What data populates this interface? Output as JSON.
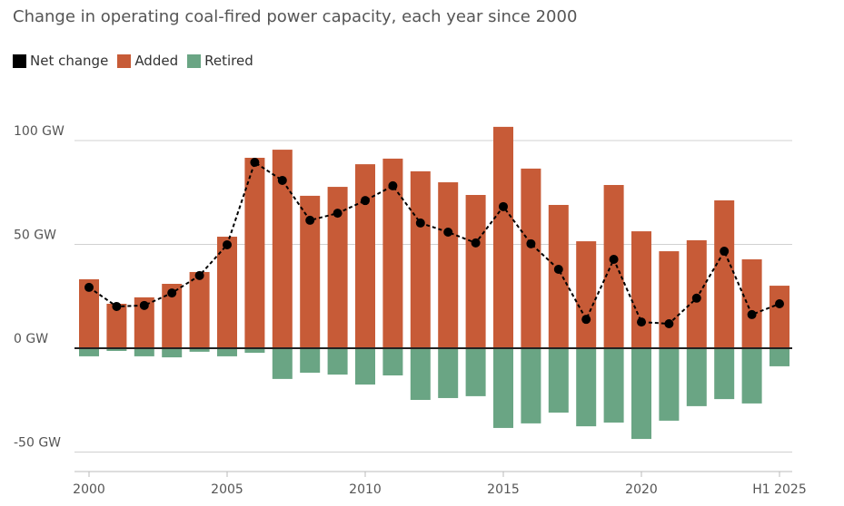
{
  "chart_data": {
    "type": "bar",
    "title": "Change in operating coal-fired power capacity, each year since 2000",
    "categories": [
      "2000",
      "2001",
      "2002",
      "2003",
      "2004",
      "2005",
      "2006",
      "2007",
      "2008",
      "2009",
      "2010",
      "2011",
      "2012",
      "2013",
      "2014",
      "2015",
      "2016",
      "2017",
      "2018",
      "2019",
      "2020",
      "2021",
      "2022",
      "2023",
      "2024",
      "H1 2025"
    ],
    "x_tick_labels": [
      "2000",
      "2005",
      "2010",
      "2015",
      "2020",
      "H1 2025"
    ],
    "y_ticks": [
      -50,
      0,
      50,
      100
    ],
    "y_tick_labels": [
      "-50 GW",
      "0 GW",
      "50 GW",
      "100 GW"
    ],
    "ylim": [
      -60,
      120
    ],
    "unit": "GW",
    "grid": true,
    "legend_position": "top-left",
    "series": [
      {
        "name": "Net change",
        "kind": "line-dashed-markers",
        "color": "#000000",
        "values": [
          29.3,
          20.1,
          20.6,
          26.6,
          35.0,
          49.8,
          89.5,
          80.8,
          61.6,
          65.0,
          71.1,
          78.2,
          60.3,
          55.9,
          50.7,
          68.2,
          50.3,
          38.0,
          13.9,
          42.8,
          12.6,
          11.8,
          24.1,
          46.7,
          16.2,
          21.4
        ]
      },
      {
        "name": "Added",
        "kind": "bar",
        "color": "#c75b37",
        "values": [
          33.2,
          21.4,
          24.5,
          31.0,
          36.7,
          53.7,
          91.7,
          95.6,
          73.4,
          77.7,
          88.6,
          91.3,
          85.2,
          79.9,
          73.8,
          106.6,
          86.5,
          69.0,
          51.5,
          78.6,
          56.3,
          46.7,
          52.0,
          71.2,
          42.8,
          30.1
        ]
      },
      {
        "name": "Retired",
        "kind": "bar",
        "color": "#6aa584",
        "values": [
          -3.9,
          -1.3,
          -3.9,
          -4.4,
          -1.7,
          -3.9,
          -2.2,
          -14.8,
          -11.8,
          -12.7,
          -17.5,
          -13.1,
          -24.9,
          -24.0,
          -23.1,
          -38.4,
          -36.2,
          -31.0,
          -37.6,
          -35.8,
          -43.7,
          -34.9,
          -27.9,
          -24.5,
          -26.6,
          -8.7
        ]
      }
    ]
  }
}
